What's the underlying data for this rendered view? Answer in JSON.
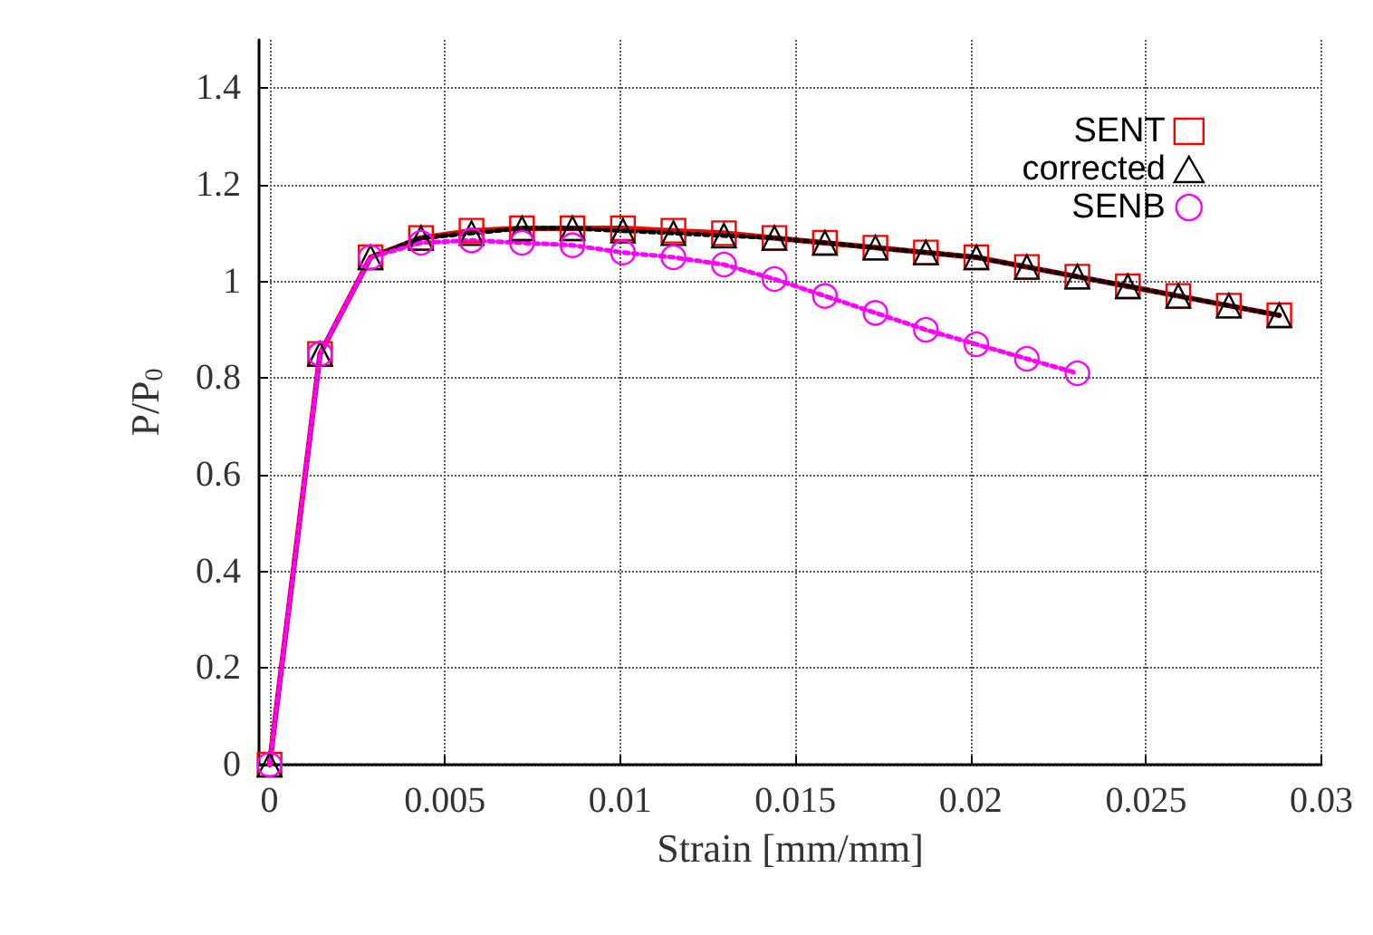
{
  "chart_data": {
    "type": "line",
    "xlabel": "Strain [mm/mm]",
    "ylabel": "P/P$_{0}$",
    "xlim": [
      -0.0003,
      0.03
    ],
    "ylim": [
      0,
      1.5
    ],
    "xticks": [
      0,
      0.005,
      0.01,
      0.015,
      0.02,
      0.025,
      0.03
    ],
    "yticks": [
      0,
      0.2,
      0.4,
      0.6,
      0.8,
      1,
      1.2,
      1.4
    ],
    "x": [
      0,
      0.00144,
      0.00288,
      0.00432,
      0.00576,
      0.0072,
      0.00864,
      0.01008,
      0.01152,
      0.01296,
      0.0144,
      0.01584,
      0.01728,
      0.01872,
      0.02016,
      0.0216,
      0.02304,
      0.02448,
      0.02592,
      0.02736,
      0.0288
    ],
    "grid": true,
    "legend": "top right",
    "series": [
      {
        "name": "SENT",
        "color": "#ff0000",
        "marker": "square",
        "line_style": "solid",
        "values": [
          0,
          0.85,
          1.05,
          1.09,
          1.105,
          1.11,
          1.11,
          1.11,
          1.105,
          1.1,
          1.09,
          1.08,
          1.07,
          1.06,
          1.05,
          1.03,
          1.01,
          0.99,
          0.97,
          0.95,
          0.93
        ]
      },
      {
        "name": "corrected",
        "color": "#000000",
        "marker": "triangle",
        "line_style": "dotted",
        "values": [
          0,
          0.85,
          1.05,
          1.09,
          1.1,
          1.11,
          1.11,
          1.105,
          1.1,
          1.095,
          1.09,
          1.08,
          1.07,
          1.06,
          1.05,
          1.03,
          1.01,
          0.99,
          0.97,
          0.95,
          0.93
        ]
      },
      {
        "name": "SENB",
        "color": "#ff00ff",
        "marker": "circle",
        "line_style": "dotted",
        "values": [
          0,
          0.85,
          1.05,
          1.08,
          1.085,
          1.08,
          1.075,
          1.06,
          1.05,
          1.035,
          1.005,
          0.97,
          0.935,
          0.9,
          0.87,
          0.84,
          0.81,
          null,
          null,
          null,
          null
        ]
      }
    ]
  }
}
